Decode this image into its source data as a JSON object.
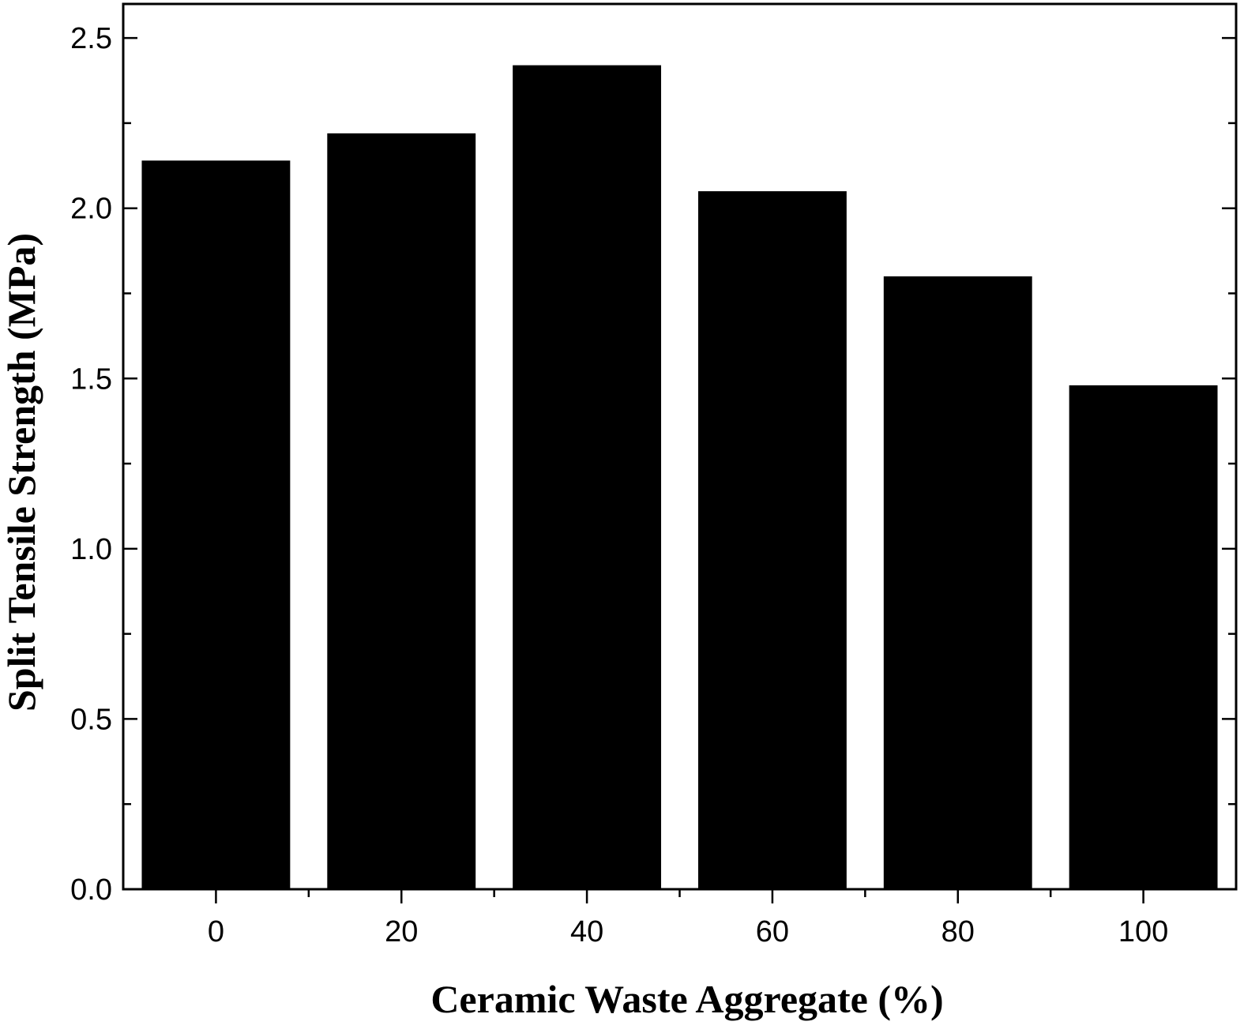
{
  "chart_data": {
    "type": "bar",
    "title": "",
    "xlabel": "Ceramic Waste Aggregate (%)",
    "ylabel": "Split Tensile Strength (MPa)",
    "categories": [
      "0",
      "20",
      "40",
      "60",
      "80",
      "100"
    ],
    "x": [
      0,
      20,
      40,
      60,
      80,
      100
    ],
    "values": [
      2.14,
      2.22,
      2.42,
      2.05,
      1.8,
      1.48
    ],
    "xlim": [
      -10,
      110
    ],
    "ylim": [
      0,
      2.6
    ],
    "xticks": [
      0,
      20,
      40,
      60,
      80,
      100
    ],
    "xtick_labels": [
      "0",
      "20",
      "40",
      "60",
      "80",
      "100"
    ],
    "yticks": [
      0,
      0.5,
      1.0,
      1.5,
      2.0,
      2.5
    ],
    "ytick_labels": [
      "0.0",
      "0.5",
      "1.0",
      "1.5",
      "2.0",
      "2.5"
    ],
    "bar_width": 16,
    "grid": false,
    "legend": "none",
    "bar_color": "#000000",
    "axis_color": "#000000"
  }
}
